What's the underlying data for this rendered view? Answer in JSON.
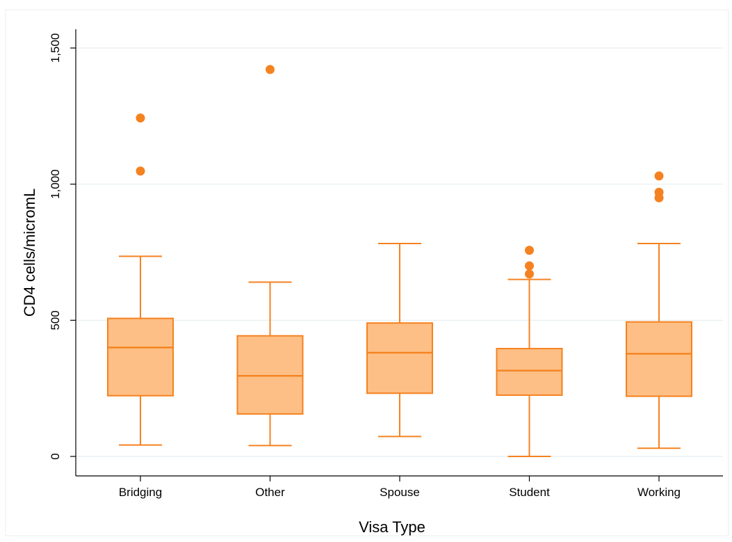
{
  "chart_data": {
    "type": "box",
    "title": "",
    "xlabel": "Visa Type",
    "ylabel": "CD4 cells/micromL",
    "ylim": [
      -70,
      1580
    ],
    "yticks": [
      0,
      500,
      1000,
      1500
    ],
    "ytick_labels": [
      "0",
      "500",
      "1,000",
      "1,500"
    ],
    "grid": true,
    "colors": {
      "box_fill": "#FDBF85",
      "box_stroke": "#F58220",
      "outlier": "#F58220",
      "grid": "#e6eef2",
      "frame": "#e8ecef"
    },
    "categories": [
      "Bridging",
      "Other",
      "Spouse",
      "Student",
      "Working"
    ],
    "boxes": [
      {
        "category": "Bridging",
        "whisker_low": 42,
        "q1": 223,
        "median": 400,
        "q3": 507,
        "whisker_high": 735,
        "outliers": [
          1048,
          1243
        ]
      },
      {
        "category": "Other",
        "whisker_low": 40,
        "q1": 156,
        "median": 296,
        "q3": 443,
        "whisker_high": 640,
        "outliers": [
          1421
        ]
      },
      {
        "category": "Spouse",
        "whisker_low": 73,
        "q1": 232,
        "median": 381,
        "q3": 490,
        "whisker_high": 782,
        "outliers": []
      },
      {
        "category": "Student",
        "whisker_low": 0,
        "q1": 225,
        "median": 315,
        "q3": 396,
        "whisker_high": 650,
        "outliers": [
          670,
          700,
          757
        ]
      },
      {
        "category": "Working",
        "whisker_low": 30,
        "q1": 221,
        "median": 377,
        "q3": 494,
        "whisker_high": 782,
        "outliers": [
          950,
          970,
          1030
        ]
      }
    ]
  }
}
